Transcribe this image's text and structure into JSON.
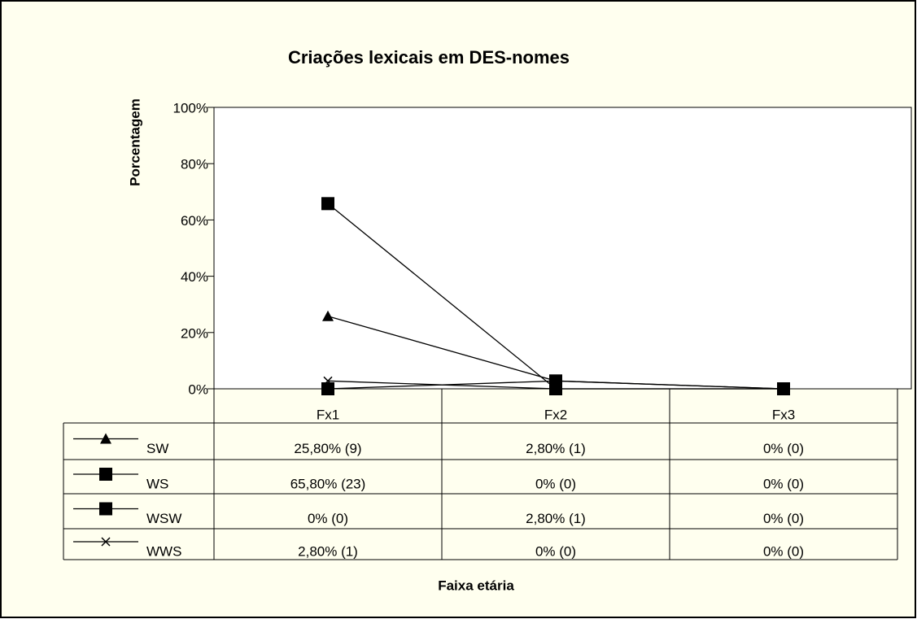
{
  "chart_data": {
    "type": "line",
    "title": "Criações lexicais em DES-nomes",
    "y_label": "Porcentagem",
    "x_label": "Faixa etária",
    "categories": [
      "Fx1",
      "Fx2",
      "Fx3"
    ],
    "series": [
      {
        "name": "SW",
        "color": "#000000",
        "marker": "triangle",
        "values": [
          25.8,
          2.8,
          0
        ],
        "value_labels": [
          "25,80% (9)",
          "2,80% (1)",
          "0% (0)"
        ]
      },
      {
        "name": "WS",
        "color": "#000000",
        "marker": "square",
        "values": [
          65.8,
          0,
          0
        ],
        "value_labels": [
          "65,80% (23)",
          "0% (0)",
          "0% (0)"
        ]
      },
      {
        "name": "WSW",
        "color": "#000000",
        "marker": "square",
        "values": [
          0,
          2.8,
          0
        ],
        "value_labels": [
          "0% (0)",
          "2,80% (1)",
          "0% (0)"
        ]
      },
      {
        "name": "WWS",
        "color": "#000000",
        "marker": "x",
        "values": [
          2.8,
          0,
          0
        ],
        "value_labels": [
          "2,80% (1)",
          "0% (0)",
          "0% (0)"
        ]
      }
    ],
    "ylim": [
      0,
      100
    ],
    "yticks": [
      {
        "value": 0,
        "label": "0%"
      },
      {
        "value": 20,
        "label": "20%"
      },
      {
        "value": 40,
        "label": "40%"
      },
      {
        "value": 60,
        "label": "60%"
      },
      {
        "value": 80,
        "label": "80%"
      },
      {
        "value": 100,
        "label": "100%"
      }
    ],
    "grid": false
  }
}
